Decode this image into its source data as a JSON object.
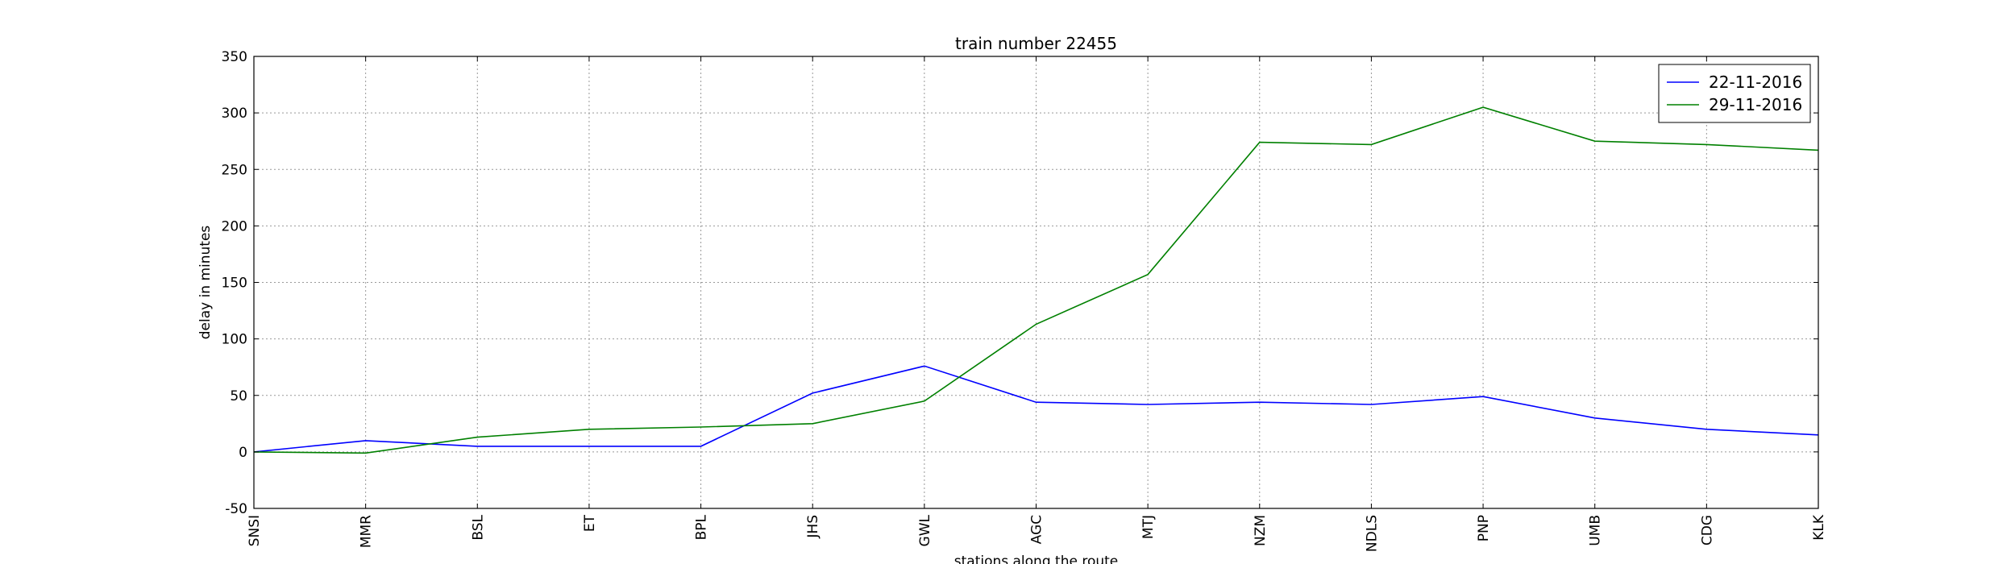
{
  "chart_data": {
    "type": "line",
    "title": "train number 22455",
    "xlabel": "stations along the route",
    "ylabel": "delay in minutes",
    "categories": [
      "SNSI",
      "MMR",
      "BSL",
      "ET",
      "BPL",
      "JHS",
      "GWL",
      "AGC",
      "MTJ",
      "NZM",
      "NDLS",
      "PNP",
      "UMB",
      "CDG",
      "KLK"
    ],
    "ylim": [
      -50,
      350
    ],
    "yticks": [
      -50,
      0,
      50,
      100,
      150,
      200,
      250,
      300,
      350
    ],
    "grid": true,
    "legend_position": "top-right",
    "series": [
      {
        "name": "22-11-2016",
        "color": "#0000ff",
        "values": [
          0,
          10,
          5,
          5,
          5,
          52,
          76,
          44,
          42,
          44,
          42,
          49,
          30,
          20,
          15
        ]
      },
      {
        "name": "29-11-2016",
        "color": "#008000",
        "values": [
          0,
          -1,
          13,
          20,
          22,
          25,
          45,
          113,
          157,
          274,
          272,
          305,
          275,
          272,
          267
        ]
      }
    ]
  }
}
